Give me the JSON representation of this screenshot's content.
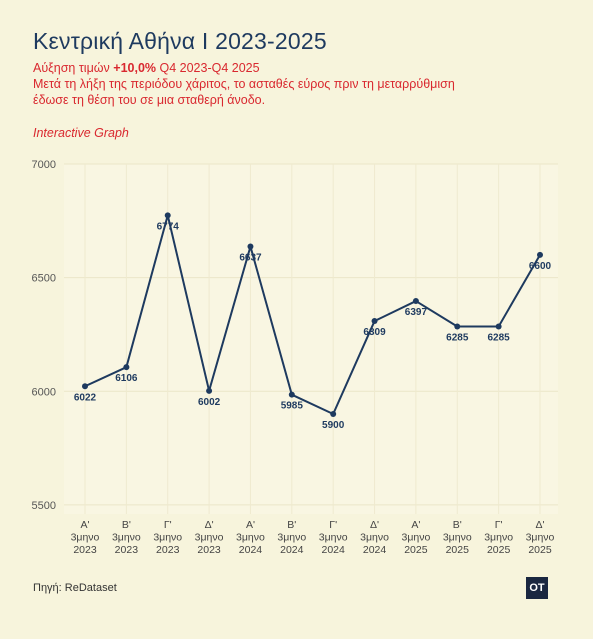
{
  "header": {
    "title": "Κεντρική Αθήνα Ι 2023-2025",
    "subtitle_prefix": "Αύξηση τιμών ",
    "subtitle_bold": "+10,0%",
    "subtitle_suffix": " Q4 2023-Q4 2025",
    "subtitle_line2": "Μετά τη λήξη της περιόδου χάριτος, το ασταθές εύρος πριν τη μεταρρύθμιση",
    "subtitle_line3": "έδωσε τη θέση του σε μια σταθερή άνοδο.",
    "interactive_label": "Interactive Graph"
  },
  "footer": {
    "source": "Πηγή: ReDataset",
    "logo_text": "OT"
  },
  "colors": {
    "background": "#f7f4dc",
    "line": "#1e3a5f",
    "title": "#1e3a5f",
    "accent": "#d9282f"
  },
  "chart_data": {
    "type": "line",
    "categories": [
      [
        "Α'",
        "3μηνο",
        "2023"
      ],
      [
        "Β'",
        "3μηνο",
        "2023"
      ],
      [
        "Γ'",
        "3μηνο",
        "2023"
      ],
      [
        "Δ'",
        "3μηνο",
        "2023"
      ],
      [
        "Α'",
        "3μηνο",
        "2024"
      ],
      [
        "Β'",
        "3μηνο",
        "2024"
      ],
      [
        "Γ'",
        "3μηνο",
        "2024"
      ],
      [
        "Δ'",
        "3μηνο",
        "2024"
      ],
      [
        "Α'",
        "3μηνο",
        "2025"
      ],
      [
        "Β'",
        "3μηνο",
        "2025"
      ],
      [
        "Γ'",
        "3μηνο",
        "2025"
      ],
      [
        "Δ'",
        "3μηνο",
        "2025"
      ]
    ],
    "values": [
      6022,
      6106,
      6774,
      6002,
      6637,
      5985,
      5900,
      6309,
      6397,
      6285,
      6285,
      6600
    ],
    "data_labels": [
      "6022",
      "6106",
      "6774",
      "6002",
      "6637",
      "5985",
      "5900",
      "6309",
      "6397",
      "6285",
      "6285",
      "6600"
    ],
    "label_position": [
      "below",
      "below",
      "below",
      "below",
      "below",
      "below",
      "below",
      "below",
      "below",
      "below",
      "below",
      "below"
    ],
    "ylim": [
      5460,
      7000
    ],
    "yticks": [
      5500,
      6000,
      6500,
      7000
    ],
    "ytick_labels": [
      "5500",
      "6000",
      "6500",
      "7000"
    ],
    "grid": true,
    "xlabel": "",
    "ylabel": ""
  }
}
